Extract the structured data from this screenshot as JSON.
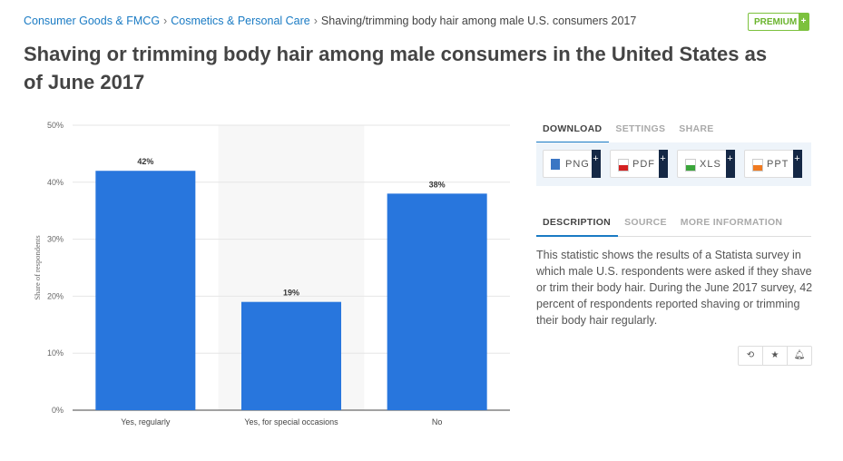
{
  "breadcrumb": {
    "items": [
      "Consumer Goods & FMCG",
      "Cosmetics & Personal Care"
    ],
    "current": "Shaving/trimming body hair among male U.S. consumers 2017"
  },
  "premium": {
    "label": "PREMIUM",
    "plus": "+"
  },
  "title": "Shaving or trimming body hair among male consumers in the United States as of June 2017",
  "download_tabs": [
    "DOWNLOAD",
    "SETTINGS",
    "SHARE"
  ],
  "download_buttons": [
    {
      "label": "PNG",
      "color": "#3a76c4"
    },
    {
      "label": "PDF",
      "color": "#d42020"
    },
    {
      "label": "XLS",
      "color": "#3aa53a"
    },
    {
      "label": "PPT",
      "color": "#f07a20"
    }
  ],
  "plus": "+",
  "info_tabs": [
    "DESCRIPTION",
    "SOURCE",
    "MORE INFORMATION"
  ],
  "description": "This statistic shows the results of a Statista survey in which male U.S. respondents were asked if they shave or trim their body hair. During the June 2017 survey, 42 percent of respondents reported shaving or trimming their body hair regularly.",
  "action_icons": [
    "history-icon",
    "star-icon",
    "bell-icon"
  ],
  "chart_data": {
    "type": "bar",
    "categories": [
      "Yes, regularly",
      "Yes, for special occasions",
      "No"
    ],
    "values": [
      42,
      19,
      38
    ],
    "data_labels": [
      "42%",
      "19%",
      "38%"
    ],
    "ylabel": "Share of respondents",
    "ylim": [
      0,
      50
    ],
    "yticks": [
      "0%",
      "10%",
      "20%",
      "30%",
      "40%",
      "50%"
    ],
    "highlighted_category": "Yes, for special occasions",
    "bar_color": "#2876dd",
    "grid": true
  }
}
